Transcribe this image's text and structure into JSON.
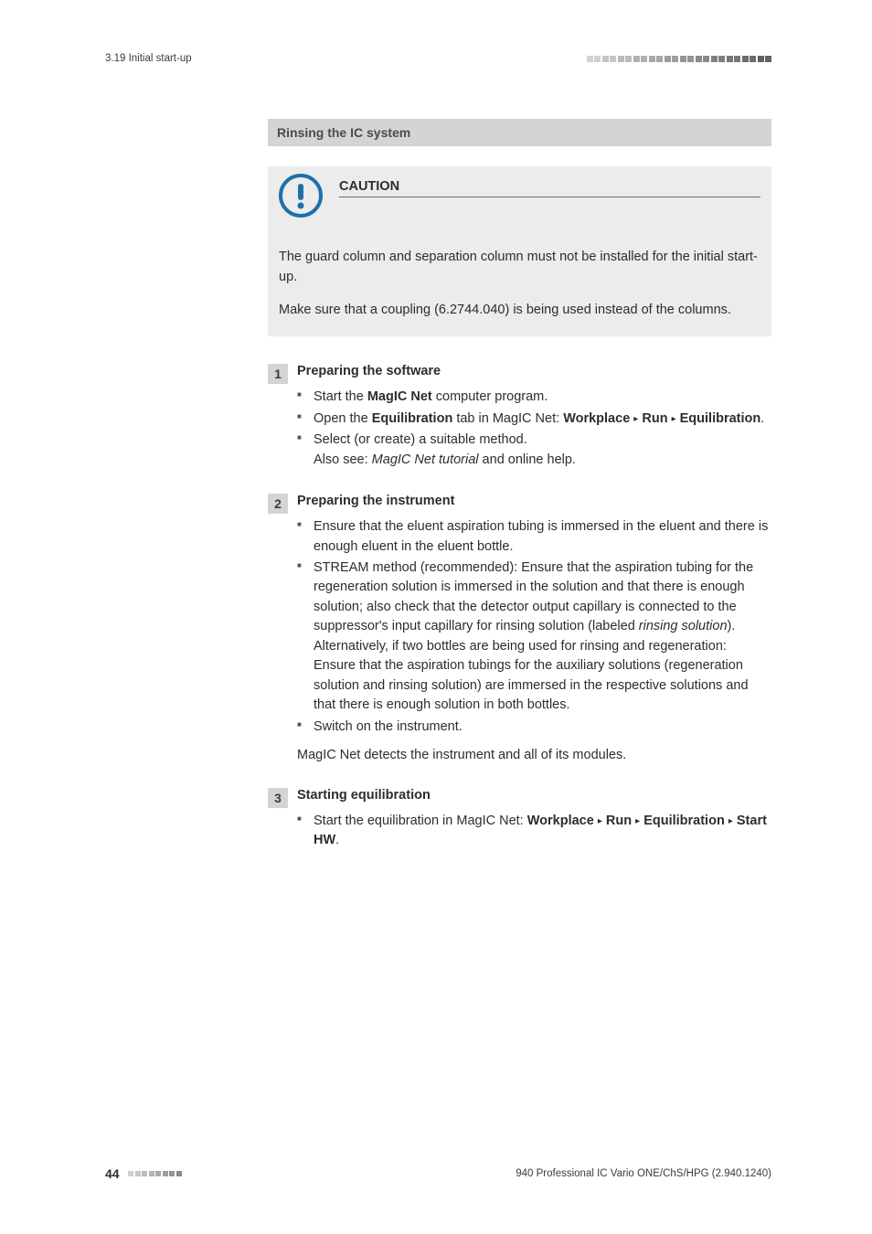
{
  "header": {
    "section_label": "3.19 Initial start-up",
    "square_colors": [
      "#d0d0d0",
      "#d0d0d0",
      "#c6c6c6",
      "#c6c6c6",
      "#bcbcbc",
      "#bcbcbc",
      "#b2b2b2",
      "#b2b2b2",
      "#a8a8a8",
      "#a8a8a8",
      "#9e9e9e",
      "#9e9e9e",
      "#949494",
      "#949494",
      "#8a8a8a",
      "#8a8a8a",
      "#808080",
      "#808080",
      "#767676",
      "#767676",
      "#6c6c6c",
      "#6c6c6c",
      "#626262",
      "#626262"
    ]
  },
  "section_heading": "Rinsing the IC system",
  "caution": {
    "title": "CAUTION",
    "para1": "The guard column and separation column must not be installed for the initial start-up.",
    "para2": "Make sure that a coupling (6.2744.040) is being used instead of the columns.",
    "icon_bg": "#1f70a8",
    "icon_fg": "#ffffff"
  },
  "steps": [
    {
      "num": "1",
      "title": "Preparing the software",
      "items": [
        {
          "pre": "Start the ",
          "b1": "MagIC Net",
          "post": " computer program."
        },
        {
          "pre": "Open the ",
          "b1": "Equilibration",
          "mid": " tab in MagIC Net: ",
          "path": [
            "Work­place",
            "Run",
            "Equilibration"
          ],
          "path_end": "."
        },
        {
          "pre": "Select (or create) a suitable method.",
          "br": true,
          "after_pre": "Also see: ",
          "after_i": "MagIC Net tutorial",
          "after_post": " and online help."
        }
      ]
    },
    {
      "num": "2",
      "title": "Preparing the instrument",
      "items": [
        {
          "plain": "Ensure that the eluent aspiration tubing is immersed in the eluent and there is enough eluent in the eluent bottle."
        },
        {
          "pre": "STREAM method (recommended): Ensure that the aspiration tub­ing for the regeneration solution is immersed in the solution and that there is enough solution; also check that the detector output capillary is connected to the suppressor's input capillary for rinsing solution (labeled ",
          "i1": "rinsing solution",
          "mid": ").",
          "br": true,
          "after_plain": "Alternatively, if two bottles are being used for rinsing and regen­eration: Ensure that the aspiration tubings for the auxiliary solu­tions (regeneration solution and rinsing solution) are immersed in the respective solutions and that there is enough solution in both bottles."
        },
        {
          "plain": "Switch on the instrument."
        }
      ],
      "after": "MagIC Net detects the instrument and all of its modules."
    },
    {
      "num": "3",
      "title": "Starting equilibration",
      "items": [
        {
          "pre": "Start the equilibration in MagIC Net: ",
          "path": [
            "Workplace",
            "Run",
            "Equi­libration",
            "Start HW"
          ],
          "path_end": "."
        }
      ]
    }
  ],
  "footer": {
    "page": "44",
    "square_colors": [
      "#d0d0d0",
      "#c6c6c6",
      "#bcbcbc",
      "#b2b2b2",
      "#a8a8a8",
      "#9e9e9e",
      "#949494",
      "#8a8a8a"
    ],
    "doc_ref": "940 Professional IC Vario ONE/ChS/HPG (2.940.1240)"
  },
  "colors": {
    "bar_bg": "#d4d4d4",
    "caution_bg": "#ececec",
    "triangle": "▸"
  }
}
